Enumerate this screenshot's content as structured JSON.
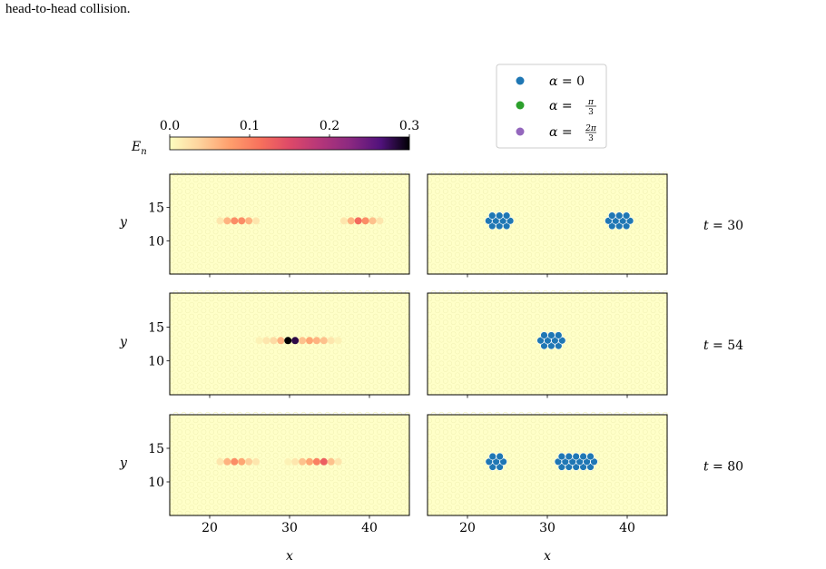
{
  "caption": "head-to-head collision.",
  "colorbar": {
    "label": "E",
    "label_sub": "n",
    "ticks": [
      "0.0",
      "0.1",
      "0.2",
      "0.3"
    ],
    "range": [
      0,
      0.3
    ],
    "colormap": "magma_r"
  },
  "legend": {
    "placement": "top-center",
    "entries": [
      {
        "prefix": "α = ",
        "value": "0",
        "color": "#1f77b4"
      },
      {
        "prefix": "α = ",
        "num": "π",
        "den": "3",
        "color": "#2ca02c"
      },
      {
        "prefix": "α = ",
        "num": "2π",
        "den": "3",
        "color": "#9467bd"
      }
    ]
  },
  "chart_data": {
    "type": "scatter",
    "xlabel": "x",
    "ylabel": "y",
    "xlim": [
      15,
      45
    ],
    "ylim": [
      5,
      20
    ],
    "xticks": [
      "20",
      "30",
      "40"
    ],
    "yticks": [
      "10",
      "15"
    ],
    "background_lattice_color": "#ffffc8",
    "rows": [
      {
        "time_label": "t = 30",
        "energy": [
          {
            "x": 21.3,
            "y": 13,
            "e": 0.02
          },
          {
            "x": 22.2,
            "y": 13,
            "e": 0.06
          },
          {
            "x": 23.1,
            "y": 13,
            "e": 0.09
          },
          {
            "x": 24.0,
            "y": 13,
            "e": 0.09
          },
          {
            "x": 24.9,
            "y": 13,
            "e": 0.06
          },
          {
            "x": 25.8,
            "y": 13,
            "e": 0.02
          },
          {
            "x": 36.8,
            "y": 13,
            "e": 0.02
          },
          {
            "x": 37.7,
            "y": 13,
            "e": 0.06
          },
          {
            "x": 38.6,
            "y": 13,
            "e": 0.12
          },
          {
            "x": 39.5,
            "y": 13,
            "e": 0.09
          },
          {
            "x": 40.4,
            "y": 13,
            "e": 0.05
          },
          {
            "x": 41.3,
            "y": 13,
            "e": 0.02
          }
        ],
        "clusters": [
          {
            "cx": 24.0,
            "cy": 13,
            "cols": 4,
            "color": "#1f77b4"
          },
          {
            "cx": 39.0,
            "cy": 13,
            "cols": 4,
            "color": "#1f77b4"
          }
        ]
      },
      {
        "time_label": "t = 54",
        "energy": [
          {
            "x": 26.2,
            "y": 13,
            "e": 0.01
          },
          {
            "x": 27.1,
            "y": 13,
            "e": 0.02
          },
          {
            "x": 28.0,
            "y": 13,
            "e": 0.03
          },
          {
            "x": 28.9,
            "y": 13,
            "e": 0.06
          },
          {
            "x": 29.8,
            "y": 13,
            "e": 0.3
          },
          {
            "x": 30.7,
            "y": 13,
            "e": 0.28
          },
          {
            "x": 31.6,
            "y": 13,
            "e": 0.05
          },
          {
            "x": 32.5,
            "y": 13,
            "e": 0.07
          },
          {
            "x": 33.4,
            "y": 13,
            "e": 0.06
          },
          {
            "x": 34.3,
            "y": 13,
            "e": 0.05
          },
          {
            "x": 35.2,
            "y": 13,
            "e": 0.02
          },
          {
            "x": 36.1,
            "y": 13,
            "e": 0.01
          }
        ],
        "clusters": [
          {
            "cx": 30.5,
            "cy": 13,
            "cols": 4,
            "color": "#1f77b4"
          }
        ]
      },
      {
        "time_label": "t = 80",
        "energy": [
          {
            "x": 21.3,
            "y": 13,
            "e": 0.02
          },
          {
            "x": 22.2,
            "y": 13,
            "e": 0.06
          },
          {
            "x": 23.1,
            "y": 13,
            "e": 0.09
          },
          {
            "x": 24.0,
            "y": 13,
            "e": 0.07
          },
          {
            "x": 24.9,
            "y": 13,
            "e": 0.04
          },
          {
            "x": 25.8,
            "y": 13,
            "e": 0.02
          },
          {
            "x": 29.8,
            "y": 13,
            "e": 0.01
          },
          {
            "x": 30.7,
            "y": 13,
            "e": 0.02
          },
          {
            "x": 31.6,
            "y": 13,
            "e": 0.05
          },
          {
            "x": 32.5,
            "y": 13,
            "e": 0.07
          },
          {
            "x": 33.4,
            "y": 13,
            "e": 0.1
          },
          {
            "x": 34.3,
            "y": 13,
            "e": 0.13
          },
          {
            "x": 35.2,
            "y": 13,
            "e": 0.05
          },
          {
            "x": 36.1,
            "y": 13,
            "e": 0.02
          }
        ],
        "clusters": [
          {
            "cx": 23.6,
            "cy": 13,
            "cols": 3,
            "color": "#1f77b4"
          },
          {
            "cx": 33.6,
            "cy": 13,
            "cols": 6,
            "color": "#1f77b4"
          }
        ]
      }
    ]
  }
}
